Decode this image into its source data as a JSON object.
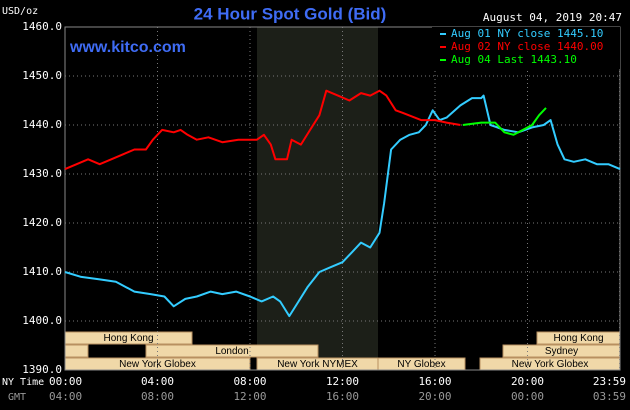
{
  "chart_data": {
    "type": "line",
    "title": "24 Hour Spot Gold (Bid)",
    "timestamp": "August 04, 2019 20:47",
    "y_unit": "USD/oz",
    "watermark": "www.kitco.com",
    "x_label_top": "NY Time",
    "x_label_bottom": "GMT",
    "xlim": [
      0,
      24
    ],
    "xticks": [
      {
        "value": 0,
        "label": "00:00"
      },
      {
        "value": 4,
        "label": "04:00"
      },
      {
        "value": 8,
        "label": "08:00"
      },
      {
        "value": 12,
        "label": "12:00"
      },
      {
        "value": 16,
        "label": "16:00"
      },
      {
        "value": 20,
        "label": "20:00"
      },
      {
        "value": 23.983,
        "label": "23:59"
      }
    ],
    "gmt_labels": [
      "04:00",
      "08:00",
      "12:00",
      "16:00",
      "20:00",
      "00:00",
      "03:59"
    ],
    "ylim": [
      1390,
      1460
    ],
    "yticks": [
      {
        "value": 1460,
        "label": "1460.0"
      },
      {
        "value": 1450,
        "label": "1450.0"
      },
      {
        "value": 1440,
        "label": "1440.0"
      },
      {
        "value": 1430,
        "label": "1430.0"
      },
      {
        "value": 1420,
        "label": "1420.0"
      },
      {
        "value": 1410,
        "label": "1410.0"
      },
      {
        "value": 1400,
        "label": "1400.0"
      },
      {
        "value": 1390,
        "label": "1390.0"
      }
    ],
    "grid": true,
    "sessions": [
      "Hong Kong",
      "London",
      "New York Globex",
      "New York NYMEX",
      "NY Globex",
      "Hong Kong",
      "Sydney",
      "New York Globex"
    ],
    "series": [
      {
        "name": "Aug 01 NY close 1445.10",
        "color": "#33ccff",
        "x": [
          0,
          0.7,
          1.5,
          2.2,
          3,
          3.7,
          4.3,
          4.7,
          5.2,
          5.7,
          6.3,
          6.8,
          7.4,
          8,
          8.5,
          9,
          9.3,
          9.7,
          10.1,
          10.5,
          11,
          11.5,
          12,
          12.4,
          12.8,
          13.2,
          13.6,
          13.8,
          14.1,
          14.5,
          14.9,
          15.3,
          15.6,
          15.9,
          16.2,
          16.5,
          17.1,
          17.6,
          18,
          18.1,
          18.4,
          19,
          19.6,
          20.2,
          20.7,
          21,
          21.3,
          21.6,
          22,
          22.5,
          23,
          23.5,
          24
        ],
        "values": [
          1410,
          1409,
          1408.5,
          1408,
          1406,
          1405.5,
          1405,
          1403,
          1404.5,
          1405,
          1406,
          1405.5,
          1406,
          1405,
          1404,
          1405,
          1404,
          1401,
          1404,
          1407,
          1410,
          1411,
          1412,
          1414,
          1416,
          1415,
          1418,
          1424,
          1435,
          1437,
          1438,
          1438.5,
          1440,
          1443,
          1441,
          1441.5,
          1444,
          1445.5,
          1445.5,
          1446,
          1440,
          1439,
          1438.5,
          1439.5,
          1440,
          1441,
          1436,
          1433,
          1432.5,
          1433,
          1432,
          1432,
          1431
        ]
      },
      {
        "name": "Aug 02 NY close 1440.00",
        "color": "#ff0000",
        "x": [
          0,
          0.5,
          1,
          1.5,
          2,
          2.5,
          3,
          3.5,
          3.8,
          4.2,
          4.7,
          5,
          5.3,
          5.7,
          6.2,
          6.8,
          7.5,
          8.3,
          8.6,
          8.9,
          9.1,
          9.6,
          9.8,
          10.2,
          10.6,
          11,
          11.3,
          11.8,
          12.3,
          12.8,
          13.2,
          13.6,
          13.9,
          14.3,
          14.6,
          15.4,
          16,
          16.5,
          17.1
        ],
        "values": [
          1431,
          1432,
          1433,
          1432,
          1433,
          1434,
          1435,
          1435,
          1437,
          1439,
          1438.5,
          1439,
          1438,
          1437,
          1437.5,
          1436.5,
          1437,
          1437,
          1438,
          1436,
          1433,
          1433,
          1437,
          1436,
          1439,
          1442,
          1447,
          1446,
          1445,
          1446.5,
          1446,
          1447,
          1446,
          1443,
          1442.5,
          1441,
          1441,
          1440.5,
          1440
        ]
      },
      {
        "name": "Aug 04 Last 1443.10",
        "color": "#00ff00",
        "x": [
          17.2,
          18,
          18.6,
          19,
          19.4,
          19.8,
          20.2,
          20.5,
          20.8
        ],
        "values": [
          1440,
          1440.5,
          1440.5,
          1438.5,
          1438,
          1439,
          1440,
          1442,
          1443.5
        ]
      }
    ]
  }
}
